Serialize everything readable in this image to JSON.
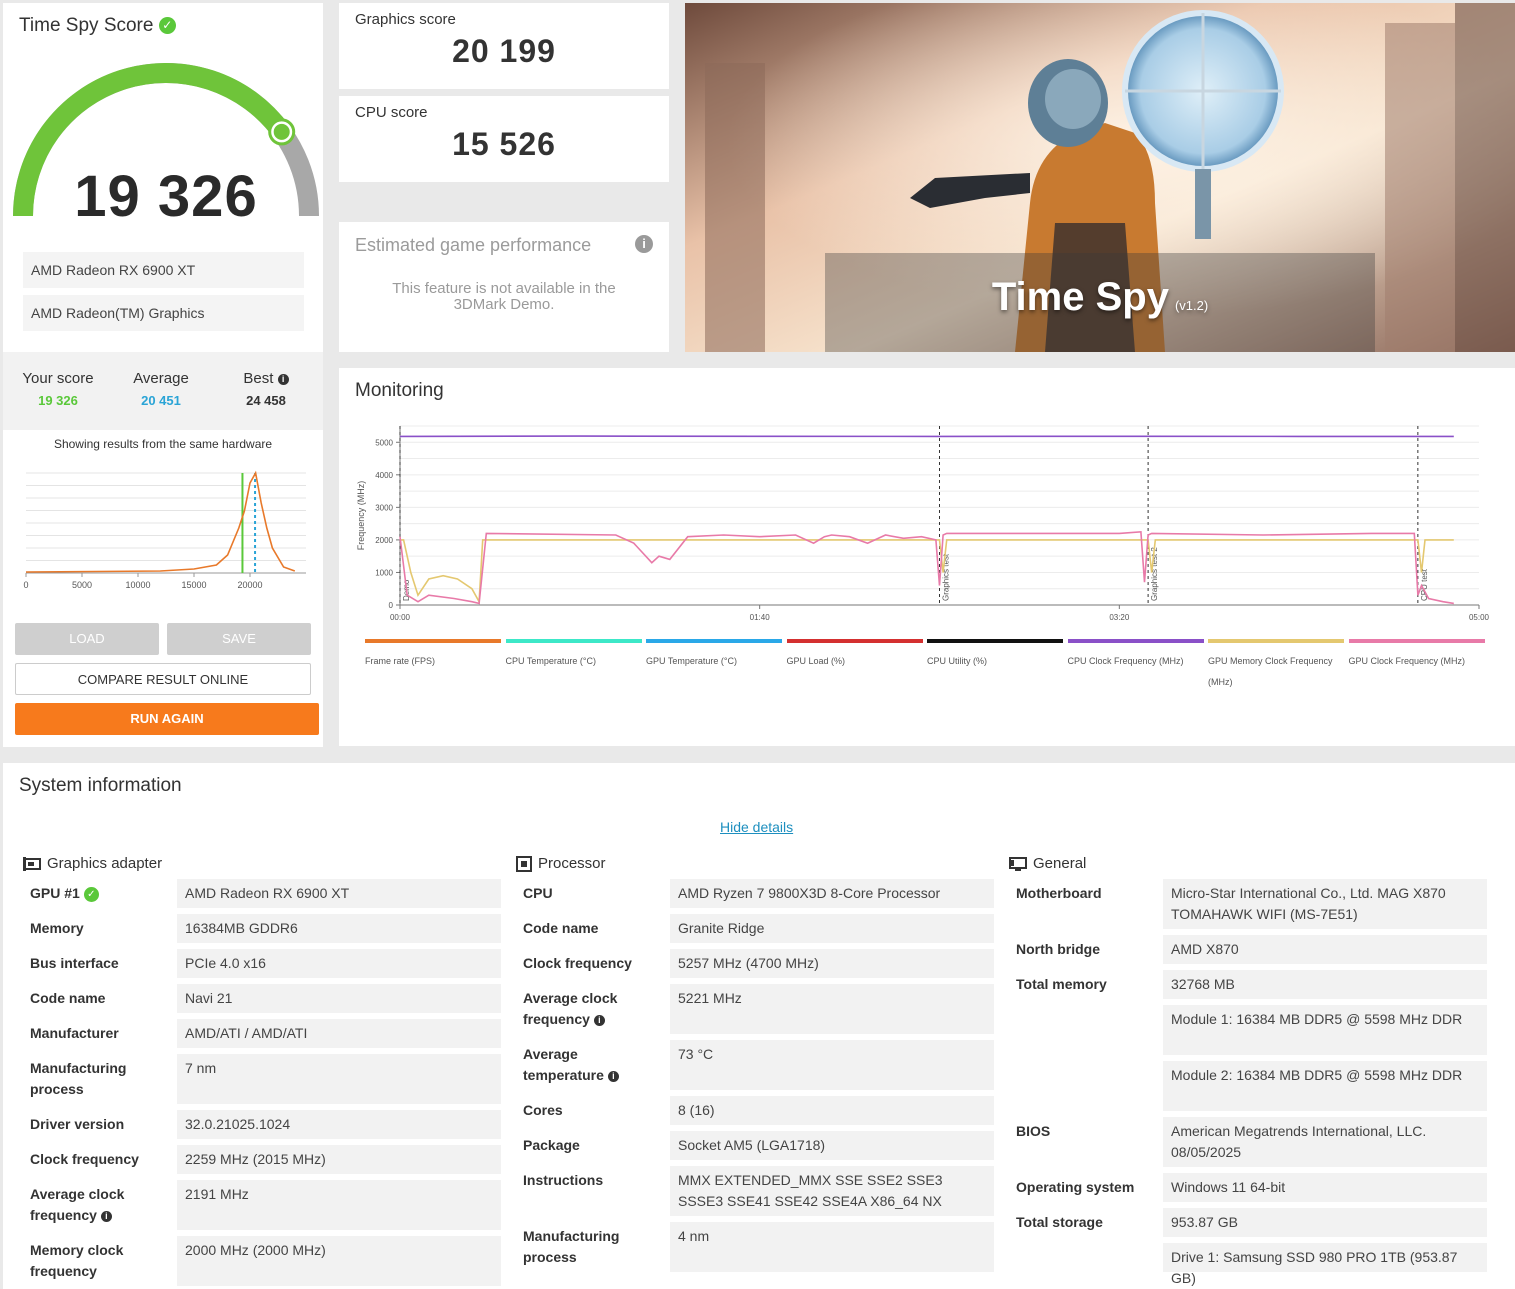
{
  "score_card": {
    "title": "Time Spy Score",
    "main_score": "19 326",
    "gauge_fraction": 0.8,
    "hardware": [
      "AMD Radeon RX 6900 XT",
      "AMD Radeon(TM) Graphics"
    ],
    "compare": {
      "your_label": "Your score",
      "your_value": "19 326",
      "avg_label": "Average",
      "avg_value": "20 451",
      "best_label": "Best",
      "best_value": "24 458"
    },
    "showing_text": "Showing results from the same hardware",
    "buttons": {
      "load": "LOAD",
      "save": "SAVE",
      "compare": "COMPARE RESULT ONLINE",
      "run": "RUN AGAIN"
    },
    "colors": {
      "green": "#5ac83a",
      "blue": "#2aa4d6",
      "orange": "#f77a1c"
    }
  },
  "scores": {
    "graphics_label": "Graphics score",
    "graphics_value": "20 199",
    "cpu_label": "CPU score",
    "cpu_value": "15 526"
  },
  "estimated": {
    "title": "Estimated game performance",
    "text": "This feature is not available in the 3DMark Demo."
  },
  "hero": {
    "title": "Time Spy",
    "version": "(v1.2)"
  },
  "monitoring": {
    "title": "Monitoring",
    "legend": [
      {
        "label": "Frame rate (FPS)",
        "color": "#e8792a"
      },
      {
        "label": "CPU Temperature (°C)",
        "color": "#3de8c8"
      },
      {
        "label": "GPU Temperature (°C)",
        "color": "#2aa8e8"
      },
      {
        "label": "GPU Load (%)",
        "color": "#d43030"
      },
      {
        "label": "CPU Utility (%)",
        "color": "#111111"
      },
      {
        "label": "CPU Clock Frequency (MHz)",
        "color": "#8a50c8"
      },
      {
        "label": "GPU Memory Clock Frequency (MHz)",
        "color": "#e4c870"
      },
      {
        "label": "GPU Clock Frequency (MHz)",
        "color": "#e87aa8"
      }
    ]
  },
  "chart_data": [
    {
      "type": "line",
      "xlabel": "",
      "ylabel": "",
      "x_ticks": [
        "0",
        "5000",
        "10000",
        "15000",
        "20000"
      ],
      "markers": {
        "your_score": 19326,
        "average": 20451
      },
      "series": [
        {
          "x": [
            0,
            12000,
            15000,
            17000,
            18000,
            19000,
            19500,
            20000,
            20500,
            21000,
            21500,
            22000,
            23000,
            24000
          ],
          "y": [
            0.01,
            0.02,
            0.04,
            0.08,
            0.18,
            0.45,
            0.62,
            0.9,
            1.0,
            0.7,
            0.45,
            0.25,
            0.06,
            0.02
          ]
        }
      ],
      "xlim": [
        0,
        25000
      ]
    },
    {
      "type": "line",
      "ylabel": "Frequency (MHz)",
      "y_ticks": [
        "0",
        "1000",
        "2000",
        "3000",
        "4000",
        "5000"
      ],
      "x_ticks": [
        "00:00",
        "01:40",
        "03:20",
        "05:00"
      ],
      "ylim": [
        0,
        5500
      ],
      "xlim": [
        0,
        300
      ],
      "phase_markers": [
        {
          "label": "Demo",
          "x": 0
        },
        {
          "label": "Graphics test",
          "x": 150
        },
        {
          "label": "Graphics test 2",
          "x": 208
        },
        {
          "label": "CPU test",
          "x": 283
        }
      ],
      "series": [
        {
          "name": "CPU Clock Frequency (MHz)",
          "color": "#8a50c8",
          "x": [
            0,
            50,
            100,
            150,
            200,
            250,
            293
          ],
          "y": [
            5180,
            5190,
            5185,
            5180,
            5185,
            5180,
            5180
          ]
        },
        {
          "name": "GPU Memory Clock Frequency (MHz)",
          "color": "#e4c870",
          "x": [
            0,
            1,
            3,
            5,
            8,
            12,
            16,
            20,
            22,
            23,
            80,
            150,
            151,
            152,
            208,
            209,
            210,
            283,
            284,
            285,
            293
          ],
          "y": [
            2000,
            2000,
            1000,
            300,
            800,
            900,
            800,
            500,
            100,
            2000,
            2000,
            2000,
            1000,
            2000,
            2000,
            1000,
            2000,
            2000,
            1000,
            2000,
            2000
          ]
        },
        {
          "name": "GPU Clock Frequency (MHz)",
          "color": "#e87aa8",
          "x": [
            0,
            2,
            5,
            8,
            15,
            20,
            22,
            24,
            60,
            65,
            70,
            72,
            75,
            80,
            90,
            100,
            110,
            115,
            118,
            120,
            125,
            130,
            135,
            140,
            145,
            149,
            150,
            151,
            152,
            200,
            206,
            207,
            208,
            209,
            240,
            270,
            282,
            283,
            284,
            286,
            290,
            293
          ],
          "y": [
            2100,
            300,
            100,
            300,
            200,
            100,
            50,
            2200,
            2150,
            1900,
            1300,
            1500,
            1400,
            2100,
            2150,
            2100,
            2150,
            1900,
            2100,
            2150,
            2100,
            1900,
            2150,
            2050,
            2100,
            2000,
            600,
            2150,
            2200,
            2200,
            2250,
            700,
            2150,
            2200,
            2150,
            2200,
            2200,
            300,
            600,
            200,
            100,
            50
          ]
        }
      ]
    }
  ],
  "system_info": {
    "title": "System information",
    "hide_details": "Hide details",
    "graphics": {
      "title": "Graphics adapter",
      "rows": [
        {
          "label": "GPU #1",
          "value": "AMD Radeon RX 6900 XT"
        },
        {
          "label": "Memory",
          "value": "16384MB GDDR6"
        },
        {
          "label": "Bus interface",
          "value": "PCIe 4.0 x16"
        },
        {
          "label": "Code name",
          "value": "Navi 21"
        },
        {
          "label": "Manufacturer",
          "value": "AMD/ATI / AMD/ATI"
        },
        {
          "label": "Manufacturing process",
          "value": "7 nm"
        },
        {
          "label": "Driver version",
          "value": "32.0.21025.1024"
        },
        {
          "label": "Clock frequency",
          "value": "2259 MHz (2015 MHz)"
        },
        {
          "label": "Average clock frequency",
          "value": "2191 MHz"
        },
        {
          "label": "Memory clock frequency",
          "value": "2000 MHz (2000 MHz)"
        }
      ]
    },
    "processor": {
      "title": "Processor",
      "rows": [
        {
          "label": "CPU",
          "value": "AMD Ryzen 7 9800X3D 8-Core Processor"
        },
        {
          "label": "Code name",
          "value": "Granite Ridge"
        },
        {
          "label": "Clock frequency",
          "value": "5257 MHz (4700 MHz)"
        },
        {
          "label": "Average clock frequency",
          "value": "5221 MHz"
        },
        {
          "label": "Average temperature",
          "value": "73 °C"
        },
        {
          "label": "Cores",
          "value": "8 (16)"
        },
        {
          "label": "Package",
          "value": "Socket AM5 (LGA1718)"
        },
        {
          "label": "Instructions",
          "value": "MMX EXTENDED_MMX SSE SSE2 SSE3 SSSE3 SSE41 SSE42 SSE4A X86_64 NX"
        },
        {
          "label": "Manufacturing process",
          "value": "4 nm"
        }
      ]
    },
    "general": {
      "title": "General",
      "rows": [
        {
          "label": "Motherboard",
          "value": "Micro-Star International Co., Ltd. MAG X870 TOMAHAWK WIFI (MS-7E51)"
        },
        {
          "label": "North bridge",
          "value": "AMD X870"
        },
        {
          "label": "Total memory",
          "value": "32768 MB"
        },
        {
          "label": "",
          "value": "Module 1: 16384 MB DDR5 @ 5598 MHz DDR"
        },
        {
          "label": "",
          "value": "Module 2: 16384 MB DDR5 @ 5598 MHz DDR"
        },
        {
          "label": "BIOS",
          "value": "American Megatrends International, LLC. 08/05/2025"
        },
        {
          "label": "Operating system",
          "value": "Windows 11 64-bit"
        },
        {
          "label": "Total storage",
          "value": "953.87 GB"
        },
        {
          "label": "",
          "value": "Drive 1: Samsung SSD 980 PRO 1TB (953.87 GB)"
        }
      ]
    }
  }
}
